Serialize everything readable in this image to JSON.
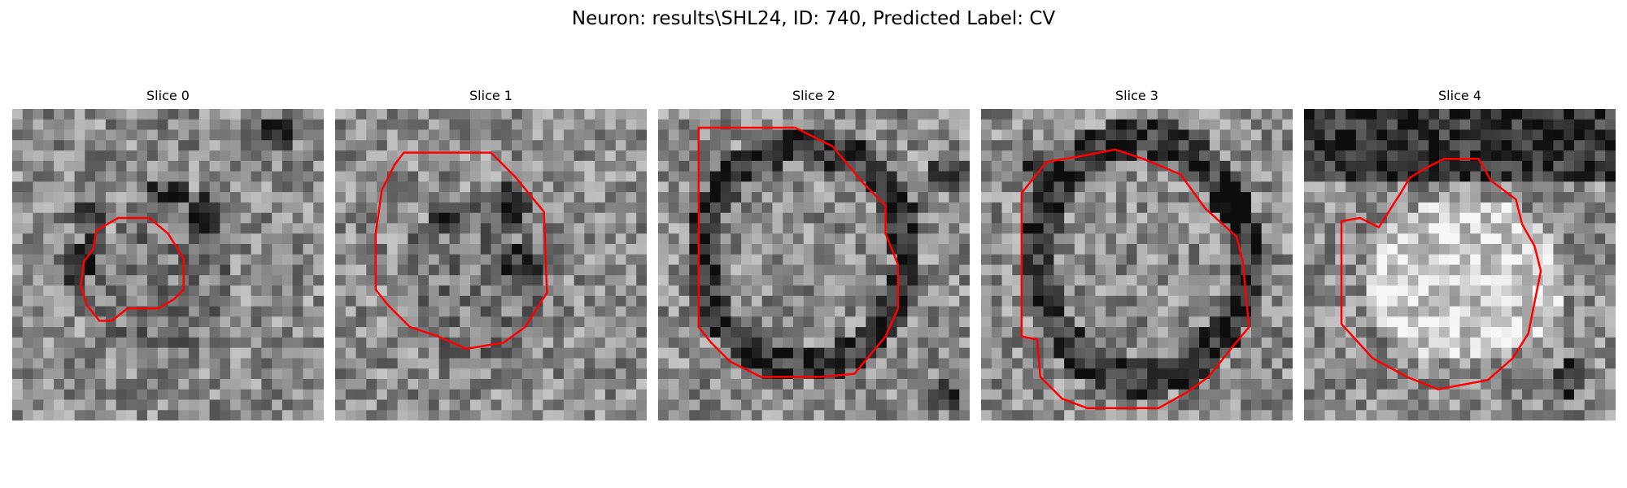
{
  "figure": {
    "title": "Neuron: results\\SHL24, ID: 740, Predicted Label: CV",
    "outline_color": "#ff0000",
    "colormap": "gray",
    "slices": [
      {
        "title": "Slice 0"
      },
      {
        "title": "Slice 1"
      },
      {
        "title": "Slice 2"
      },
      {
        "title": "Slice 3"
      },
      {
        "title": "Slice 4"
      }
    ]
  }
}
